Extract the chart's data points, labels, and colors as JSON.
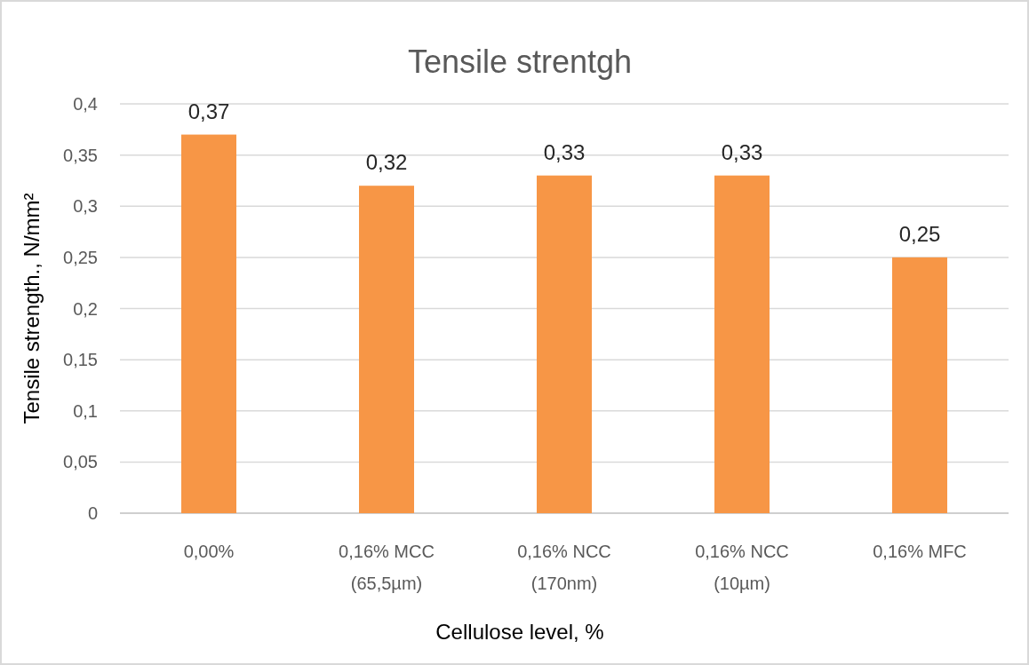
{
  "chart_data": {
    "type": "bar",
    "title": "Tensile strentgh",
    "xlabel": "Cellulose level, %",
    "ylabel": "Tensile strength., N/mm²",
    "categories": [
      "0,00%",
      "0,16% MCC\n(65,5µm)",
      "0,16% NCC\n(170nm)",
      "0,16% NCC\n(10µm)",
      "0,16% MFC"
    ],
    "values": [
      0.37,
      0.32,
      0.33,
      0.33,
      0.25
    ],
    "value_labels": [
      "0,37",
      "0,32",
      "0,33",
      "0,33",
      "0,25"
    ],
    "color": "#f79646",
    "ylim": [
      0,
      0.4
    ],
    "yticks": [
      0,
      {
        "value": 0.05,
        "label": "0,05"
      },
      {
        "value": 0.1,
        "label": "0,1"
      },
      {
        "value": 0.15,
        "label": "0,15"
      },
      {
        "value": 0.2,
        "label": "0,2"
      },
      {
        "value": 0.25,
        "label": "0,25"
      },
      {
        "value": 0.3,
        "label": "0,3"
      },
      {
        "value": 0.35,
        "label": "0,35"
      },
      {
        "value": 0.4,
        "label": "0,4"
      }
    ],
    "grid": "y"
  }
}
